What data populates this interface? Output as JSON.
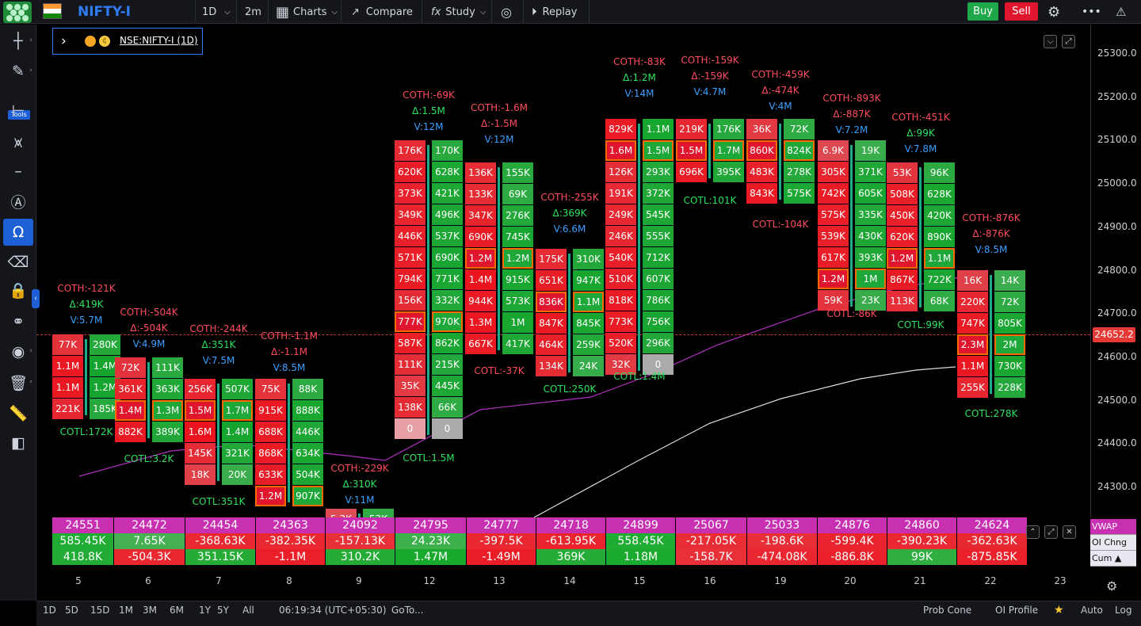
{
  "header": {
    "symbol": "NIFTY-I",
    "interval": "1D",
    "timeframe": "2m",
    "charts_label": "Charts",
    "compare_label": "Compare",
    "study_label": "Study",
    "replay_label": "Replay",
    "buy_label": "Buy",
    "sell_label": "Sell"
  },
  "sidebar": {
    "tools_badge": "Tools"
  },
  "legend": {
    "symbol": "NSE:NIFTY-I (1D)"
  },
  "price_axis": {
    "ticks": [
      "25300.0",
      "25200.0",
      "25100.0",
      "25000.0",
      "24900.0",
      "24800.0",
      "24700.0",
      "24600.0",
      "24500.0",
      "24400.0",
      "24300.0"
    ],
    "last_price": "24652.2"
  },
  "columns": [
    {
      "stats": [
        {
          "t": "COTH:-121K",
          "c": "red"
        },
        {
          "t": "Δ:419K",
          "c": "grn"
        },
        {
          "t": "V:5.7M",
          "c": "blu"
        }
      ],
      "cotl": "COTL:172K",
      "bid": [
        "77K",
        "1.1M",
        "1.1M",
        "221K"
      ],
      "ask": [
        "280K",
        "1.4M",
        "1.2M",
        "185K"
      ],
      "hl": []
    },
    {
      "stats": [
        {
          "t": "COTH:-504K",
          "c": "red"
        },
        {
          "t": "Δ:-504K",
          "c": "red"
        },
        {
          "t": "V:4.9M",
          "c": "blu"
        }
      ],
      "cotl": "COTL:3.2K",
      "bid": [
        "72K",
        "361K",
        "1.4M",
        "882K"
      ],
      "ask": [
        "111K",
        "363K",
        "1.3M",
        "389K"
      ],
      "hl": [
        2
      ]
    },
    {
      "stats": [
        {
          "t": "COTH:-244K",
          "c": "red"
        },
        {
          "t": "Δ:351K",
          "c": "grn"
        },
        {
          "t": "V:7.5M",
          "c": "blu"
        }
      ],
      "cotl": "COTL:351K",
      "bid": [
        "256K",
        "1.5M",
        "1.6M",
        "145K",
        "18K"
      ],
      "ask": [
        "507K",
        "1.7M",
        "1.4M",
        "321K",
        "20K"
      ],
      "hl": [
        1
      ]
    },
    {
      "stats": [
        {
          "t": "COTH:-1.1M",
          "c": "red"
        },
        {
          "t": "Δ:-1.1M",
          "c": "red"
        },
        {
          "t": "V:8.5M",
          "c": "blu"
        }
      ],
      "cotl": "",
      "bid": [
        "75K",
        "915K",
        "688K",
        "868K",
        "633K",
        "1.2M"
      ],
      "ask": [
        "88K",
        "888K",
        "446K",
        "634K",
        "504K",
        "907K"
      ],
      "hl": [
        5
      ]
    },
    {
      "stats": [
        {
          "t": "COTH:-229K",
          "c": "red"
        },
        {
          "t": "Δ:310K",
          "c": "grn"
        },
        {
          "t": "V:11M",
          "c": "blu"
        }
      ],
      "cotl": "",
      "bid": [
        "5.3K"
      ],
      "ask": [
        "53K"
      ],
      "hl": []
    },
    {
      "stats": [
        {
          "t": "COTH:-69K",
          "c": "red"
        },
        {
          "t": "Δ:1.5M",
          "c": "grn"
        },
        {
          "t": "V:12M",
          "c": "blu"
        }
      ],
      "cotl": "COTL:1.5M",
      "bid": [
        "176K",
        "620K",
        "373K",
        "349K",
        "446K",
        "571K",
        "794K",
        "156K",
        "777K",
        "587K",
        "111K",
        "35K",
        "138K",
        "0"
      ],
      "ask": [
        "170K",
        "628K",
        "421K",
        "496K",
        "537K",
        "690K",
        "771K",
        "332K",
        "970K",
        "862K",
        "215K",
        "445K",
        "66K",
        "0"
      ],
      "hl": [
        8
      ]
    },
    {
      "stats": [
        {
          "t": "COTH:-1.6M",
          "c": "red"
        },
        {
          "t": "Δ:-1.5M",
          "c": "red"
        },
        {
          "t": "V:12M",
          "c": "blu"
        }
      ],
      "cotl": "COTL:-37K",
      "bid": [
        "136K",
        "133K",
        "347K",
        "690K",
        "1.2M",
        "1.4M",
        "944K",
        "1.3M",
        "667K"
      ],
      "ask": [
        "155K",
        "69K",
        "276K",
        "745K",
        "1.2M",
        "915K",
        "573K",
        "1M",
        "417K"
      ],
      "hl": [
        4
      ]
    },
    {
      "stats": [
        {
          "t": "COTH:-255K",
          "c": "red"
        },
        {
          "t": "Δ:369K",
          "c": "grn"
        },
        {
          "t": "V:6.6M",
          "c": "blu"
        }
      ],
      "cotl": "COTL:250K",
      "bid": [
        "175K",
        "651K",
        "836K",
        "847K",
        "464K",
        "134K"
      ],
      "ask": [
        "310K",
        "947K",
        "1.1M",
        "845K",
        "259K",
        "24K"
      ],
      "hl": [
        2
      ]
    },
    {
      "stats": [
        {
          "t": "COTH:-83K",
          "c": "red"
        },
        {
          "t": "Δ:1.2M",
          "c": "grn"
        },
        {
          "t": "V:14M",
          "c": "blu"
        }
      ],
      "cotl": "COTL:1.4M",
      "bid": [
        "829K",
        "1.6M",
        "126K",
        "191K",
        "249K",
        "246K",
        "540K",
        "510K",
        "818K",
        "773K",
        "520K",
        "32K"
      ],
      "ask": [
        "1.1M",
        "1.5M",
        "293K",
        "372K",
        "545K",
        "555K",
        "712K",
        "607K",
        "786K",
        "756K",
        "296K",
        "0"
      ],
      "hl": [
        1
      ]
    },
    {
      "stats": [
        {
          "t": "COTH:-159K",
          "c": "red"
        },
        {
          "t": "Δ:-159K",
          "c": "red"
        },
        {
          "t": "V:4.7M",
          "c": "blu"
        }
      ],
      "cotl": "COTL:101K",
      "bid": [
        "219K",
        "1.5M",
        "696K"
      ],
      "ask": [
        "176K",
        "1.7M",
        "395K"
      ],
      "hl": [
        1
      ]
    },
    {
      "stats": [
        {
          "t": "COTH:-459K",
          "c": "red"
        },
        {
          "t": "Δ:-474K",
          "c": "red"
        },
        {
          "t": "V:4M",
          "c": "blu"
        }
      ],
      "cotl": "COTL:-104K",
      "bid": [
        "36K",
        "860K",
        "483K",
        "843K"
      ],
      "ask": [
        "72K",
        "824K",
        "278K",
        "575K"
      ],
      "hl": [
        1
      ]
    },
    {
      "stats": [
        {
          "t": "COTH:-893K",
          "c": "red"
        },
        {
          "t": "Δ:-887K",
          "c": "red"
        },
        {
          "t": "V:7.2M",
          "c": "blu"
        }
      ],
      "cotl": "COTL:-86K",
      "bid": [
        "6.9K",
        "305K",
        "742K",
        "575K",
        "539K",
        "617K",
        "1.2M",
        "59K"
      ],
      "ask": [
        "19K",
        "371K",
        "605K",
        "335K",
        "430K",
        "393K",
        "1M",
        "23K"
      ],
      "hl": [
        6
      ]
    },
    {
      "stats": [
        {
          "t": "COTH:-451K",
          "c": "red"
        },
        {
          "t": "Δ:99K",
          "c": "grn"
        },
        {
          "t": "V:7.8M",
          "c": "blu"
        }
      ],
      "cotl": "COTL:99K",
      "bid": [
        "53K",
        "508K",
        "450K",
        "620K",
        "1.2M",
        "867K",
        "113K"
      ],
      "ask": [
        "96K",
        "628K",
        "420K",
        "890K",
        "1.1M",
        "722K",
        "68K"
      ],
      "hl": [
        4
      ]
    },
    {
      "stats": [
        {
          "t": "COTH:-876K",
          "c": "red"
        },
        {
          "t": "Δ:-876K",
          "c": "red"
        },
        {
          "t": "V:8.5M",
          "c": "blu"
        }
      ],
      "cotl": "COTL:278K",
      "bid": [
        "16K",
        "220K",
        "747K",
        "2.3M",
        "1.1M",
        "255K"
      ],
      "ask": [
        "14K",
        "72K",
        "805K",
        "2M",
        "730K",
        "228K"
      ],
      "hl": [
        3
      ]
    }
  ],
  "table": {
    "vwap": [
      "24551",
      "24472",
      "24454",
      "24363",
      "24092",
      "24795",
      "24777",
      "24718",
      "24899",
      "25067",
      "25033",
      "24876",
      "24860",
      "24624"
    ],
    "oi_chng": [
      "585.45K",
      "7.65K",
      "-368.63K",
      "-382.35K",
      "-157.13K",
      "24.23K",
      "-397.5K",
      "-613.95K",
      "558.45K",
      "-217.05K",
      "-198.6K",
      "-599.4K",
      "-390.23K",
      "-362.63K"
    ],
    "cum": [
      "418.8K",
      "-504.3K",
      "351.15K",
      "-1.1M",
      "310.2K",
      "1.47M",
      "-1.49M",
      "369K",
      "1.18M",
      "-158.7K",
      "-474.08K",
      "-886.8K",
      "99K",
      "-875.85K"
    ],
    "row_labels": [
      "VWAP",
      "OI Chng",
      "Cum ▲"
    ]
  },
  "x_axis": {
    "labels": [
      "5",
      "6",
      "7",
      "8",
      "9",
      "12",
      "13",
      "14",
      "15",
      "16",
      "19",
      "20",
      "21",
      "22",
      "23"
    ]
  },
  "bottom": {
    "ranges": [
      "1D",
      "5D",
      "15D",
      "1M",
      "3M",
      "6M",
      "1Y",
      "5Y",
      "All"
    ],
    "clock": "06:19:34 (UTC+05:30)",
    "goto": "GoTo...",
    "prob_cone": "Prob Cone",
    "oi_profile": "OI Profile",
    "auto": "Auto",
    "log": "Log"
  },
  "indicator_badge": "N",
  "colors": {
    "bid": "#e0162f",
    "ask": "#1fa83a",
    "highlight": "#ff6b00",
    "vwap": "#c92fb1"
  }
}
